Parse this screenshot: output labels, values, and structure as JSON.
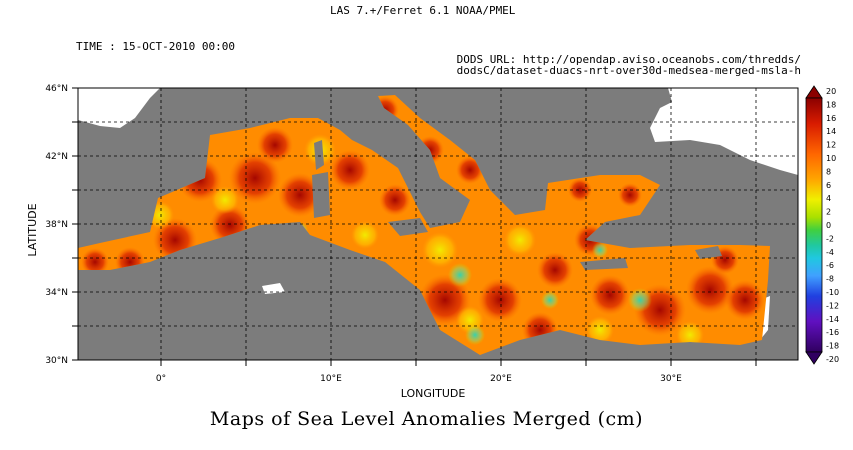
{
  "header": {
    "software": "LAS 7.+/Ferret 6.1      NOAA/PMEL",
    "time": "TIME : 15-OCT-2010 00:00",
    "dods_line1": "DODS URL: http://opendap.aviso.oceanobs.com/thredds/",
    "dods_line2": "dodsC/dataset-duacs-nrt-over30d-medsea-merged-msla-h"
  },
  "map": {
    "title": "Maps of Sea Level Anomalies Merged (cm)",
    "xlabel": "LONGITUDE",
    "ylabel": "LATITUDE",
    "x_ticks": [
      "0°",
      "10°E",
      "20°E",
      "30°E"
    ],
    "y_ticks": [
      "46°N",
      "42°N",
      "38°N",
      "34°N",
      "30°N"
    ],
    "colors": {
      "land": "#7c7c7c",
      "nodata": "#ffffff"
    }
  },
  "colorbar": {
    "labels": [
      "20",
      "18",
      "16",
      "14",
      "12",
      "10",
      "8",
      "6",
      "4",
      "2",
      "0",
      "-2",
      "-4",
      "-6",
      "-8",
      "-10",
      "-12",
      "-14",
      "-16",
      "-18",
      "-20"
    ],
    "range": [
      -20,
      20
    ],
    "colors": [
      "#8b0000",
      "#b30000",
      "#d81b00",
      "#ee4000",
      "#ff6600",
      "#ff8c00",
      "#ffa500",
      "#ffd000",
      "#f0f000",
      "#a8e000",
      "#40d040",
      "#20c8a0",
      "#20c8e0",
      "#40a0ff",
      "#3070ff",
      "#2040e0",
      "#4020d0",
      "#6010c0",
      "#7000b0",
      "#500090",
      "#300060"
    ]
  }
}
